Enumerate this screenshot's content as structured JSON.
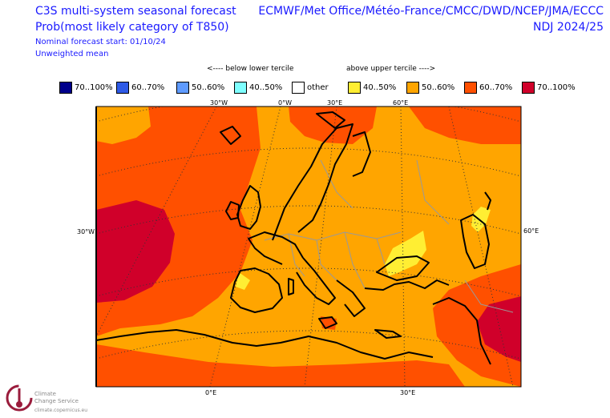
{
  "header": {
    "title_line1": "C3S multi-system seasonal forecast",
    "title_line2": "Prob(most likely category of T850)",
    "note_start": "Nominal forecast start: 01/10/24",
    "note_weight": "Unweighted mean",
    "models": "ECMWF/Met Office/Météo-France/CMCC/DWD/NCEP/JMA/ECCC",
    "season": "NDJ 2024/25"
  },
  "legend": {
    "below_label": "<---- below lower tercile",
    "above_label": "above upper tercile ---->",
    "items": [
      {
        "label": "70..100%",
        "color": "#00008b"
      },
      {
        "label": "60..70%",
        "color": "#2e5ae6"
      },
      {
        "label": "50..60%",
        "color": "#5f9bff"
      },
      {
        "label": "40..50%",
        "color": "#7fffff"
      },
      {
        "label": "other",
        "color": "#ffffff"
      },
      {
        "label": "40..50%",
        "color": "#ffee33"
      },
      {
        "label": "50..60%",
        "color": "#ffa500"
      },
      {
        "label": "60..70%",
        "color": "#ff5000"
      },
      {
        "label": "70..100%",
        "color": "#d0002a"
      }
    ]
  },
  "map": {
    "top_ticks": [
      "30°W",
      "0°W",
      "30°E",
      "60°E"
    ],
    "left_tick": "30°W",
    "right_tick": "60°E",
    "bottom_ticks": [
      "0°E",
      "30°E"
    ]
  },
  "logo": {
    "line1": "Climate",
    "line2": "Change Service",
    "url": "climate.copernicus.eu"
  }
}
